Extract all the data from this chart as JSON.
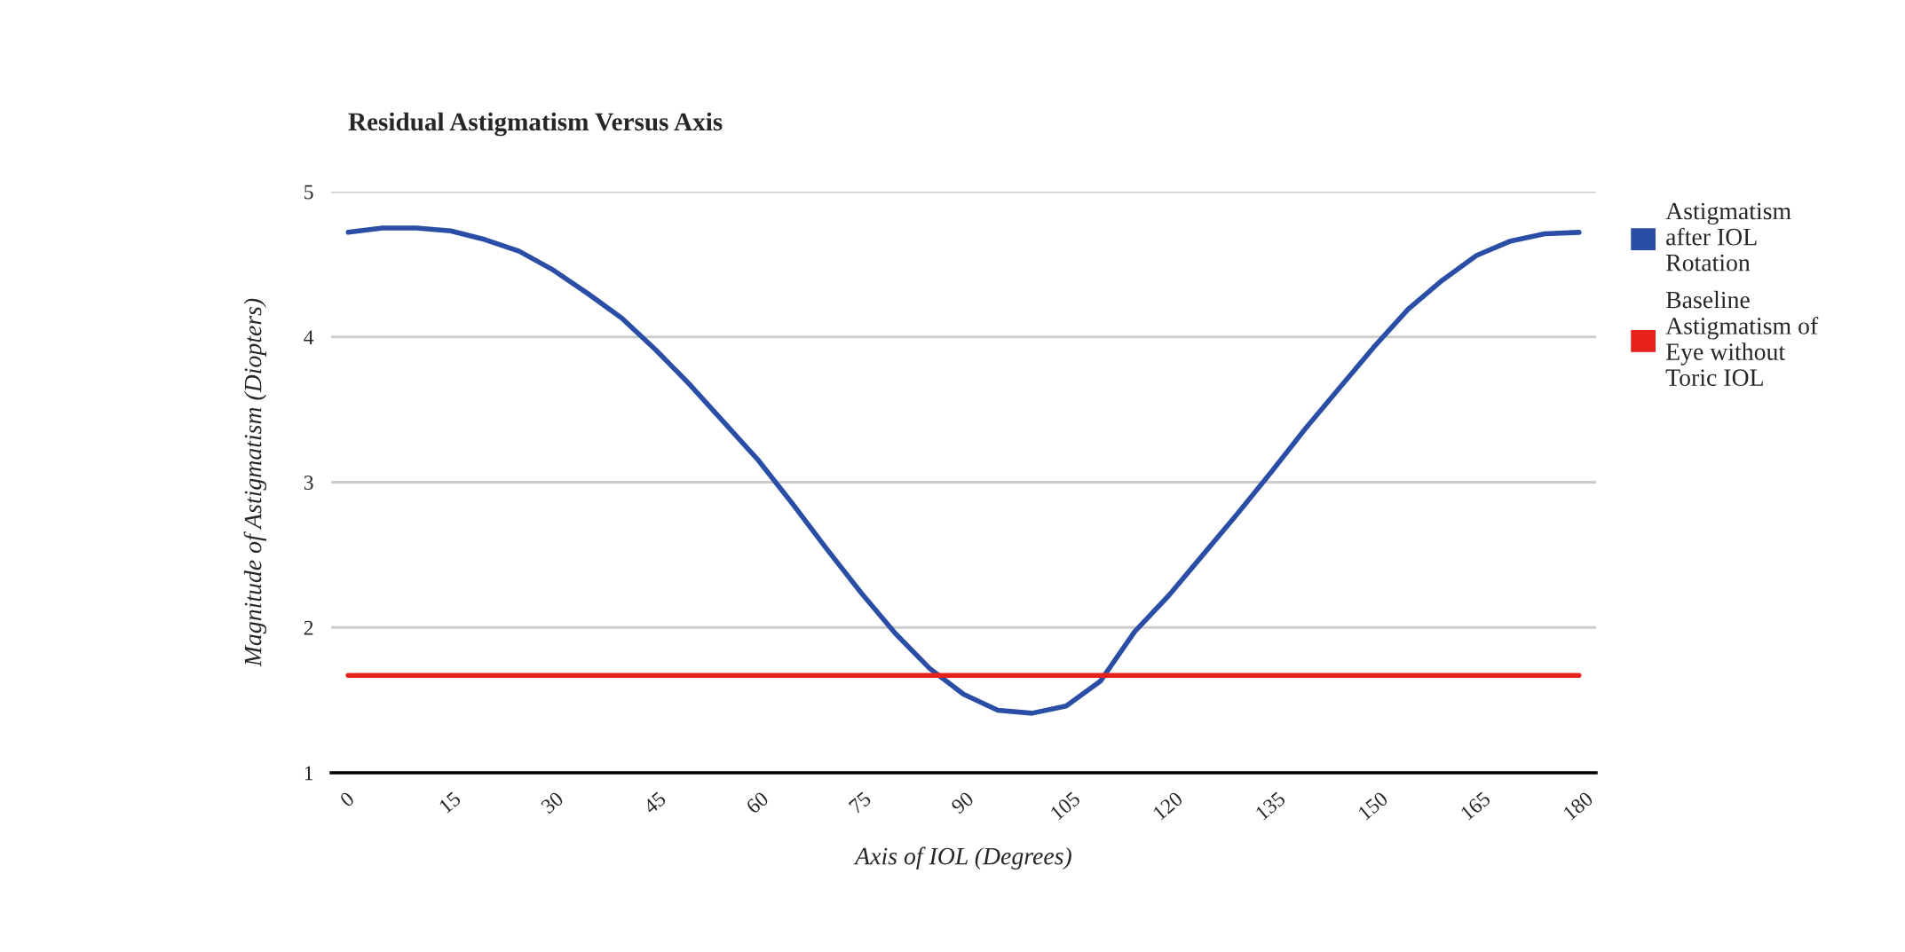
{
  "chart_data": {
    "type": "line",
    "title": "Residual Astigmatism Versus Axis",
    "xlabel": "Axis of IOL (Degrees)",
    "ylabel": "Magnitude of Astigmatism (Diopters)",
    "series": [
      {
        "name": "Astigmatism after IOL Rotation",
        "color": "#2a4ea6",
        "x": [
          0,
          5,
          10,
          15,
          20,
          25,
          30,
          35,
          40,
          45,
          50,
          55,
          60,
          65,
          70,
          75,
          80,
          85,
          90,
          95,
          100,
          105,
          110,
          115,
          120,
          125,
          130,
          135,
          140,
          145,
          150,
          155,
          160,
          165,
          170,
          175,
          180
        ],
        "values": [
          4.72,
          4.75,
          4.75,
          4.73,
          4.67,
          4.59,
          4.46,
          4.3,
          4.13,
          3.91,
          3.67,
          3.41,
          3.15,
          2.85,
          2.54,
          2.24,
          1.96,
          1.72,
          1.54,
          1.43,
          1.41,
          1.46,
          1.63,
          1.97,
          2.22,
          2.5,
          2.78,
          3.07,
          3.37,
          3.65,
          3.93,
          4.19,
          4.39,
          4.56,
          4.66,
          4.71,
          4.72
        ]
      },
      {
        "name": "Baseline Astigmatism of Eye without Toric IOL",
        "color": "#e8211b",
        "x": [
          0,
          180
        ],
        "values": [
          1.67,
          1.67
        ]
      }
    ],
    "xlim": [
      -2.5,
      182.5
    ],
    "xticks": [
      0,
      15,
      30,
      45,
      60,
      75,
      90,
      105,
      120,
      135,
      150,
      165,
      180
    ],
    "ylim": [
      1,
      5
    ],
    "yticks": [
      1,
      2,
      3,
      4,
      5
    ],
    "grid": "y",
    "legend": "top right"
  }
}
